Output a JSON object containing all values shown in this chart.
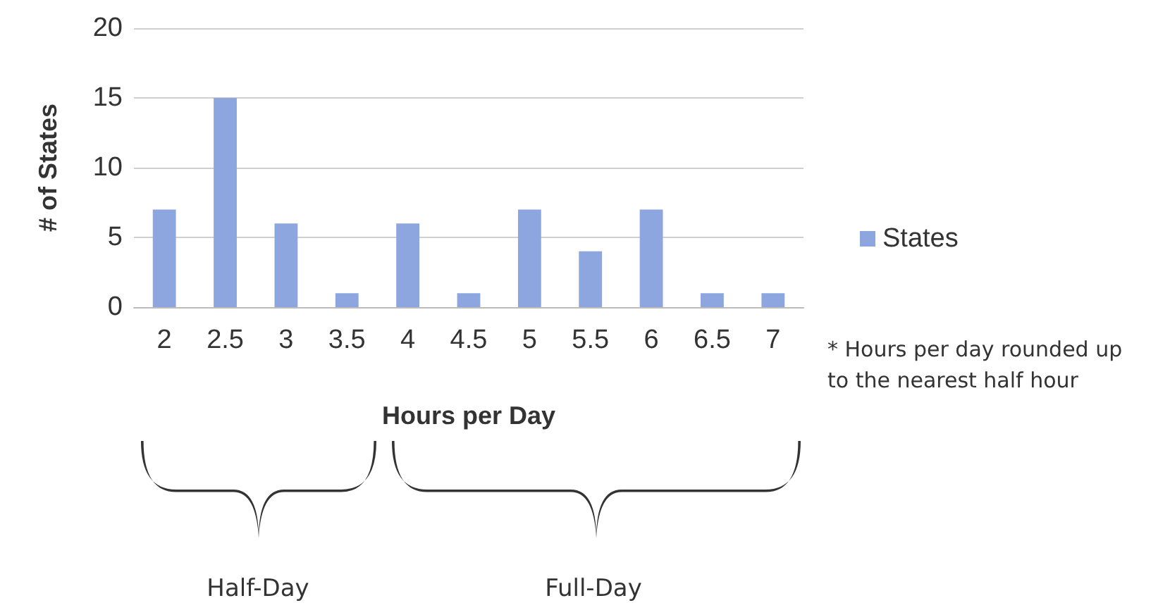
{
  "chart_data": {
    "type": "bar",
    "categories": [
      "2",
      "2.5",
      "3",
      "3.5",
      "4",
      "4.5",
      "5",
      "5.5",
      "6",
      "6.5",
      "7"
    ],
    "series": [
      {
        "name": "States",
        "color": "#8ea6e0",
        "values": [
          7,
          15,
          6,
          1,
          6,
          1,
          7,
          4,
          7,
          1,
          1
        ]
      }
    ],
    "xlabel": "Hours per Day",
    "ylabel": "# of States",
    "ylim": [
      0,
      20
    ],
    "yticks": [
      0,
      5,
      10,
      15,
      20
    ],
    "grid": "y",
    "legend": "right",
    "annotations": [
      "* Hours per day rounded up to the nearest half hour",
      "Half-Day",
      "Full-Day"
    ]
  }
}
